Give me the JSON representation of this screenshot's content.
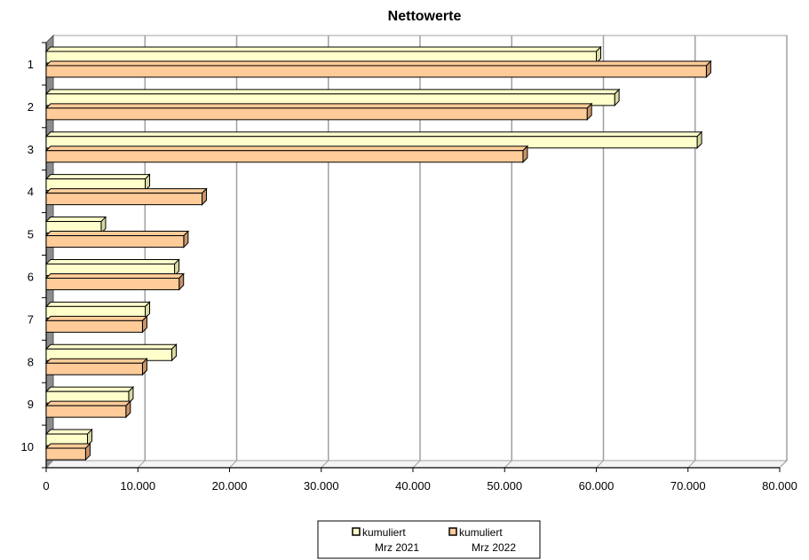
{
  "chart_data": {
    "type": "bar",
    "orientation": "horizontal",
    "title": "Nettowerte",
    "categories": [
      "1",
      "2",
      "3",
      "4",
      "5",
      "6",
      "7",
      "8",
      "9",
      "10"
    ],
    "series": [
      {
        "name_line1": "kumuliert",
        "name_line2": "Mrz 2021",
        "color": "#ffffcc",
        "values": [
          60000,
          62000,
          71000,
          10800,
          6000,
          14000,
          10800,
          13700,
          9000,
          4500
        ]
      },
      {
        "name_line1": "kumuliert",
        "name_line2": "Mrz 2022",
        "color": "#ffcc99",
        "values": [
          72000,
          59000,
          52000,
          17000,
          15000,
          14500,
          10500,
          10500,
          8700,
          4300
        ]
      }
    ],
    "xlim": [
      0,
      80000
    ],
    "xticks": [
      "0",
      "10.000",
      "20.000",
      "30.000",
      "40.000",
      "50.000",
      "60.000",
      "70.000",
      "80.000"
    ],
    "xtick_values": [
      0,
      10000,
      20000,
      30000,
      40000,
      50000,
      60000,
      70000,
      80000
    ],
    "grid": true,
    "legend_position": "bottom"
  }
}
